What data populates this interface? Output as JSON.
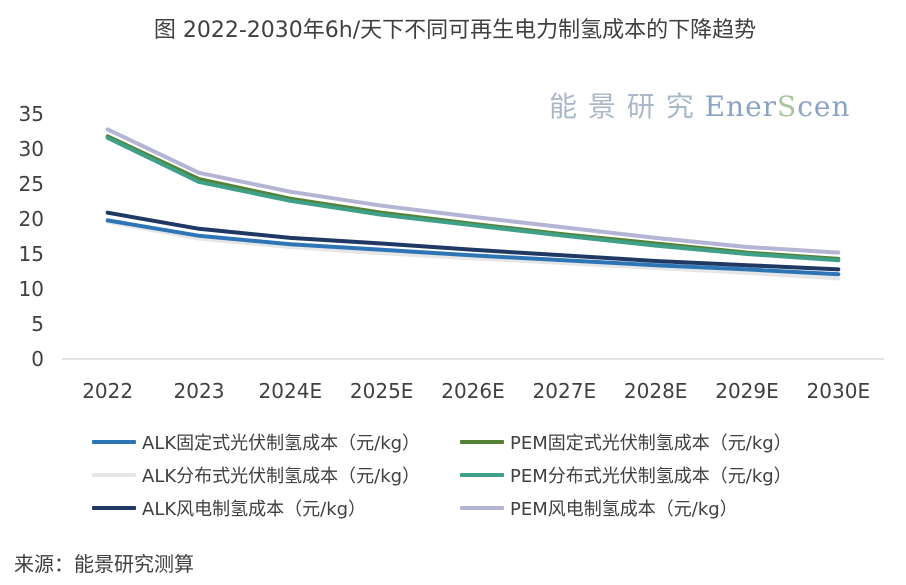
{
  "title": "图  2022-2030年6h/天下不同可再生电力制氢成本的下降趋势",
  "watermark": {
    "cn": "能 景 研 究 ",
    "en_part1": "Ener",
    "en_part2": "S",
    "en_part3": "cen"
  },
  "source": "来源：能景研究测算",
  "chart_data": {
    "type": "line",
    "categories": [
      "2022",
      "2023",
      "2024E",
      "2025E",
      "2026E",
      "2027E",
      "2028E",
      "2029E",
      "2030E"
    ],
    "ylim": [
      0,
      35
    ],
    "yticks": [
      0,
      5,
      10,
      15,
      20,
      25,
      30,
      35
    ],
    "grid": false,
    "legend_position": "bottom",
    "series": [
      {
        "name": "ALK固定式光伏制氢成本（元/kg）",
        "color": "#2e75b6",
        "values": [
          19.8,
          17.6,
          16.4,
          15.6,
          14.8,
          14.1,
          13.4,
          12.8,
          12.1
        ]
      },
      {
        "name": "PEM固定式光伏制氢成本（元/kg）",
        "color": "#548235",
        "values": [
          31.8,
          25.7,
          22.9,
          20.9,
          19.3,
          17.8,
          16.5,
          15.2,
          14.3
        ]
      },
      {
        "name": "ALK分布式光伏制氢成本（元/kg）",
        "color": "#e6e6e6",
        "values": [
          19.6,
          17.2,
          16.0,
          15.1,
          14.4,
          13.7,
          13.0,
          12.3,
          11.5
        ]
      },
      {
        "name": "PEM分布式光伏制氢成本（元/kg）",
        "color": "#3fa08a",
        "values": [
          31.6,
          25.3,
          22.6,
          20.6,
          19.1,
          17.6,
          16.2,
          15.0,
          14.1
        ]
      },
      {
        "name": "ALK风电制氢成本（元/kg）",
        "color": "#1f3864",
        "values": [
          20.9,
          18.6,
          17.3,
          16.5,
          15.6,
          14.8,
          14.0,
          13.4,
          12.8
        ]
      },
      {
        "name": "PEM风电制氢成本（元/kg）",
        "color": "#b4b4d4",
        "values": [
          32.8,
          26.6,
          23.9,
          21.9,
          20.3,
          18.8,
          17.3,
          16.0,
          15.2
        ]
      }
    ]
  }
}
